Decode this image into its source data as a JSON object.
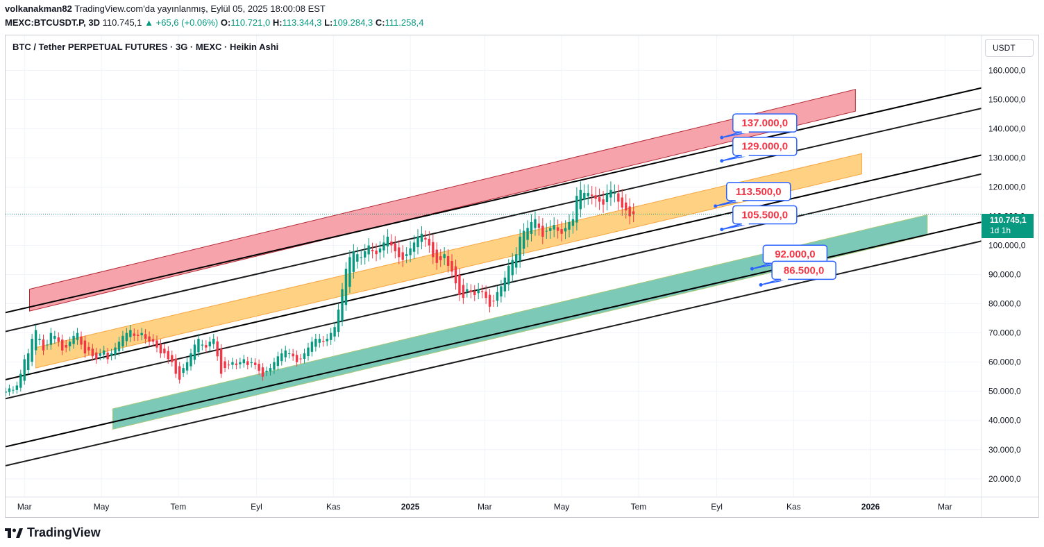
{
  "header": {
    "author": "volkanakman82",
    "published": "TradingView.com'da yayınlanmış, Eylül 05, 2025 18:00:08 EST",
    "symbol": "MEXC:BTCUSDT.P, 3D",
    "last": "110.745,1",
    "change_arrow": "▲",
    "change": "+65,6 (+0.06%)",
    "o_label": "O:",
    "o": "110.721,0",
    "h_label": "H:",
    "h": "113.344,3",
    "l_label": "L:",
    "l": "109.284,3",
    "c_label": "C:",
    "c": "111.258,4"
  },
  "chart_title": "BTC / Tether PERPETUAL FUTURES · 3G · MEXC · Heikin Ashi",
  "unit_button": "USDT",
  "price_tag": {
    "value": "110.745,1",
    "countdown": "1d 1h"
  },
  "footer": {
    "logo_text": "TradingView",
    "logo_icon": "tradingview-logo-icon"
  },
  "colors": {
    "up": "#089981",
    "down": "#f23645",
    "red_zone": "#f7a3ab",
    "orange_zone": "#ffd183",
    "green_zone": "#7dc9b8",
    "label_border": "#2962ff",
    "label_text": "#f23645"
  },
  "chart_data": {
    "type": "candlestick",
    "style": "Heikin Ashi",
    "timeframe": "3D",
    "y_axis": {
      "ticks": [
        "160.000,0",
        "150.000,0",
        "140.000,0",
        "130.000,0",
        "120.000,0",
        "110.000,0",
        "100.000,0",
        "90.000,0",
        "80.000,0",
        "70.000,0",
        "60.000,0",
        "50.000,0",
        "40.000,0",
        "30.000,0",
        "20.000,0"
      ],
      "tick_values": [
        160000,
        150000,
        140000,
        130000,
        120000,
        110000,
        100000,
        90000,
        80000,
        70000,
        60000,
        50000,
        40000,
        30000,
        20000
      ],
      "range": [
        14000,
        172000
      ]
    },
    "x_axis": {
      "ticks": [
        "Mar",
        "May",
        "Tem",
        "Eyl",
        "Kas",
        "2025",
        "Mar",
        "May",
        "Tem",
        "Eyl",
        "Kas",
        "2026",
        "Mar"
      ],
      "bold": [
        "2025",
        "2026"
      ],
      "range": [
        "2024-02-15",
        "2026-03-30"
      ]
    },
    "current_price": 110745.1,
    "annotations": [
      {
        "text": "137.000,0",
        "price": 137000,
        "date": "2025-09-05"
      },
      {
        "text": "129.000,0",
        "price": 129000,
        "date": "2025-09-05"
      },
      {
        "text": "113.500,0",
        "price": 113500,
        "date": "2025-08-31"
      },
      {
        "text": "105.500,0",
        "price": 105500,
        "date": "2025-09-05"
      },
      {
        "text": "92.000,0",
        "price": 92000,
        "date": "2025-09-29"
      },
      {
        "text": "86.500,0",
        "price": 86500,
        "date": "2025-10-06"
      }
    ],
    "trendlines": [
      {
        "start": [
          "2024-02-15",
          77000
        ],
        "end": [
          "2026-03-30",
          154000
        ]
      },
      {
        "start": [
          "2024-02-15",
          70500
        ],
        "end": [
          "2026-03-30",
          147000
        ]
      },
      {
        "start": [
          "2024-02-15",
          54000
        ],
        "end": [
          "2026-03-30",
          131000
        ]
      },
      {
        "start": [
          "2024-02-15",
          47500
        ],
        "end": [
          "2026-03-30",
          124500
        ]
      },
      {
        "start": [
          "2024-02-15",
          31000
        ],
        "end": [
          "2026-03-30",
          108000
        ]
      },
      {
        "start": [
          "2024-02-15",
          24500
        ],
        "end": [
          "2026-03-30",
          101500
        ]
      }
    ],
    "zones": [
      {
        "name": "red",
        "start": [
          "2024-03-05",
          77500
        ],
        "end": [
          "2025-12-20",
          146000
        ],
        "height": 7500
      },
      {
        "name": "orange",
        "start": [
          "2024-03-10",
          58000
        ],
        "end": [
          "2025-12-25",
          124500
        ],
        "height": 7000
      },
      {
        "name": "green",
        "start": [
          "2024-05-10",
          37000
        ],
        "end": [
          "2026-02-15",
          103500
        ],
        "height": 7000
      }
    ],
    "candles_start": "2024-02-15",
    "candle_interval_days": 3,
    "closes": [
      50000,
      51000,
      50500,
      52000,
      56000,
      61000,
      63000,
      68000,
      71000,
      68000,
      64000,
      66000,
      70000,
      69000,
      67000,
      64000,
      65000,
      67000,
      69000,
      70000,
      66000,
      63000,
      64000,
      62000,
      61000,
      63000,
      64000,
      61000,
      63000,
      65000,
      67000,
      69000,
      70000,
      71000,
      69000,
      69000,
      70000,
      68000,
      67000,
      67000,
      65000,
      63000,
      63000,
      61000,
      60000,
      56000,
      54000,
      58000,
      60000,
      63000,
      66000,
      68000,
      66000,
      65000,
      67000,
      68000,
      62000,
      56000,
      58000,
      59000,
      60000,
      59000,
      60000,
      61000,
      59000,
      60000,
      59000,
      57000,
      55000,
      57000,
      58000,
      60000,
      62000,
      63000,
      64000,
      63000,
      62000,
      60000,
      61000,
      63000,
      65000,
      67000,
      68000,
      68000,
      67000,
      68000,
      70000,
      72000,
      78000,
      85000,
      92000,
      96000,
      98000,
      97000,
      96000,
      98000,
      100000,
      98000,
      97000,
      99000,
      101000,
      103000,
      100000,
      98000,
      96000,
      95000,
      97000,
      99000,
      101000,
      103000,
      104000,
      102000,
      100000,
      96000,
      94000,
      95000,
      97000,
      93000,
      91000,
      87000,
      83000,
      82000,
      85000,
      84000,
      83000,
      85000,
      84000,
      82000,
      79000,
      81000,
      84000,
      86000,
      89000,
      93000,
      95000,
      97000,
      103000,
      105000,
      106000,
      108000,
      109000,
      106000,
      103000,
      105000,
      106000,
      107000,
      105000,
      104000,
      106000,
      108000,
      109000,
      117000,
      119000,
      118000,
      118000,
      117000,
      116000,
      115000,
      114000,
      118000,
      119000,
      118000,
      115000,
      113000,
      112000,
      110000,
      110745
    ]
  }
}
